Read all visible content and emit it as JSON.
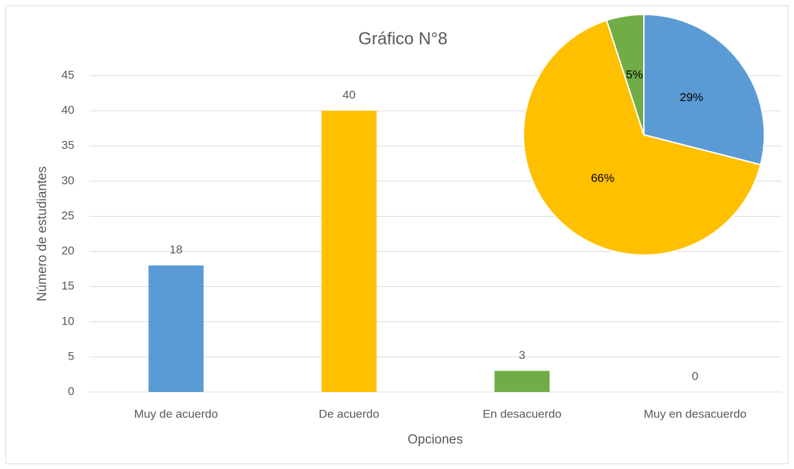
{
  "chart_data": [
    {
      "type": "bar",
      "title": "Gráfico N°8",
      "x_label": "Opciones",
      "y_label": "Número de estudiantes",
      "categories": [
        "Muy de acuerdo",
        "De acuerdo",
        "En desacuerdo",
        "Muy en desacuerdo"
      ],
      "values": [
        18,
        40,
        3,
        0
      ],
      "colors": [
        "#5b9bd5",
        "#ffc000",
        "#70ad47",
        "#a5a5a5"
      ],
      "ylim": [
        0,
        45
      ],
      "yticks": [
        0,
        5,
        10,
        15,
        20,
        25,
        30,
        35,
        40,
        45
      ],
      "grid": true
    },
    {
      "type": "pie",
      "values": [
        29,
        66,
        5
      ],
      "value_labels": [
        "29%",
        "66%",
        "5%"
      ],
      "colors": [
        "#5b9bd5",
        "#ffc000",
        "#70ad47"
      ]
    }
  ]
}
